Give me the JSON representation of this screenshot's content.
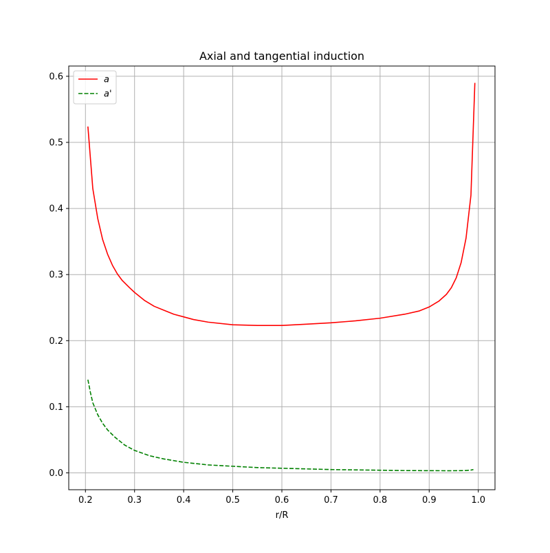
{
  "chart_data": {
    "type": "line",
    "title": "Axial and tangential induction",
    "xlabel": "r/R",
    "ylabel": "",
    "xlim": [
      0.166,
      1.034
    ],
    "ylim": [
      -0.0255,
      0.6155
    ],
    "xticks": [
      0.2,
      0.3,
      0.4,
      0.5,
      0.6,
      0.7,
      0.8,
      0.9,
      1.0
    ],
    "xtick_labels": [
      "0.2",
      "0.3",
      "0.4",
      "0.5",
      "0.6",
      "0.7",
      "0.8",
      "0.9",
      "1.0"
    ],
    "yticks": [
      0.0,
      0.1,
      0.2,
      0.3,
      0.4,
      0.5,
      0.6
    ],
    "ytick_labels": [
      "0.0",
      "0.1",
      "0.2",
      "0.3",
      "0.4",
      "0.5",
      "0.6"
    ],
    "grid": true,
    "legend_position": "top-left",
    "series": [
      {
        "name": "a",
        "color": "#ff0000",
        "linestyle": "solid",
        "x": [
          0.205,
          0.215,
          0.225,
          0.235,
          0.245,
          0.255,
          0.265,
          0.275,
          0.29,
          0.3,
          0.32,
          0.34,
          0.36,
          0.38,
          0.4,
          0.42,
          0.45,
          0.5,
          0.55,
          0.6,
          0.65,
          0.7,
          0.75,
          0.8,
          0.85,
          0.88,
          0.9,
          0.92,
          0.935,
          0.945,
          0.955,
          0.965,
          0.975,
          0.985,
          0.993
        ],
        "y": [
          0.524,
          0.43,
          0.385,
          0.353,
          0.331,
          0.314,
          0.301,
          0.291,
          0.28,
          0.273,
          0.261,
          0.252,
          0.246,
          0.24,
          0.236,
          0.232,
          0.228,
          0.224,
          0.223,
          0.223,
          0.225,
          0.227,
          0.23,
          0.234,
          0.24,
          0.245,
          0.251,
          0.26,
          0.27,
          0.28,
          0.295,
          0.318,
          0.355,
          0.42,
          0.59
        ]
      },
      {
        "name": "a'",
        "color": "#008000",
        "linestyle": "dashed",
        "x": [
          0.205,
          0.21,
          0.215,
          0.225,
          0.235,
          0.245,
          0.26,
          0.28,
          0.3,
          0.33,
          0.36,
          0.4,
          0.45,
          0.5,
          0.55,
          0.6,
          0.65,
          0.7,
          0.75,
          0.8,
          0.85,
          0.9,
          0.94,
          0.96,
          0.975,
          0.985,
          0.99
        ],
        "y": [
          0.141,
          0.122,
          0.106,
          0.088,
          0.075,
          0.065,
          0.054,
          0.042,
          0.034,
          0.026,
          0.021,
          0.016,
          0.012,
          0.01,
          0.008,
          0.007,
          0.006,
          0.005,
          0.0045,
          0.004,
          0.0035,
          0.0033,
          0.0032,
          0.0033,
          0.0036,
          0.0042,
          0.005
        ]
      }
    ]
  }
}
